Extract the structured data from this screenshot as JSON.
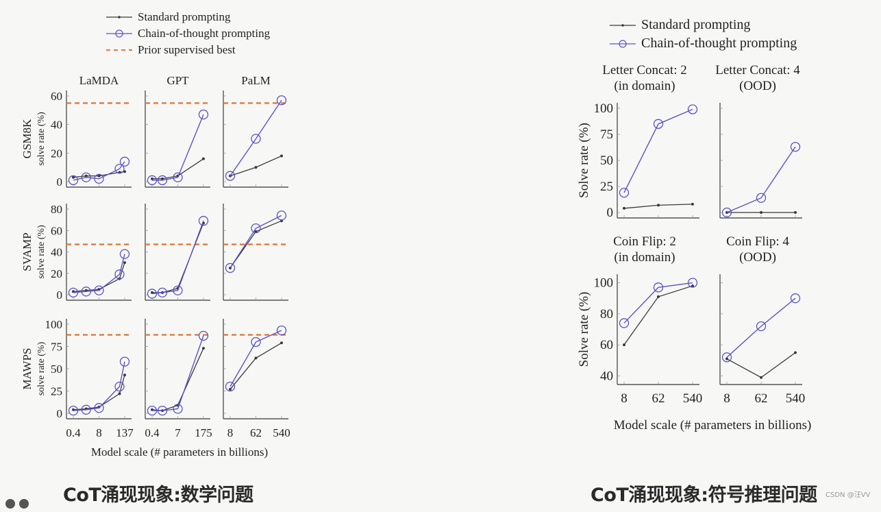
{
  "captions": {
    "left": "CoT涌现现象:数学问题",
    "right": "CoT涌现现象:符号推理问题"
  },
  "watermark": "CSDN @汪VV",
  "colors": {
    "standard": "#3a3a3a",
    "cot": "#5a52c8",
    "prior": "#e07a3a",
    "axis": "#555555",
    "text": "#222222"
  },
  "chart_data": [
    {
      "type": "line",
      "title": "Math word problems (GSM8K / SVAMP / MAWPS) across LaMDA, GPT, PaLM",
      "legend": [
        "Standard prompting",
        "Chain-of-thought prompting",
        "Prior supervised best"
      ],
      "legend_position": "top",
      "xlabel": "Model scale (# parameters in billions)",
      "columns": [
        "LaMDA",
        "GPT",
        "PaLM"
      ],
      "column_xticks": [
        [
          "0.4",
          "8",
          "137"
        ],
        [
          "0.4",
          "7",
          "175"
        ],
        [
          "8",
          "62",
          "540"
        ]
      ],
      "rows": [
        {
          "name": "GSM8K",
          "ylabel": "solve rate (%)",
          "ylim": [
            0,
            60
          ],
          "yticks": [
            0,
            20,
            40,
            60
          ],
          "prior": 55,
          "panels": [
            {
              "x": [
                0,
                0.5,
                1,
                1.8,
                2
              ],
              "standard": [
                3,
                4,
                4,
                6.5,
                7
              ],
              "cot": [
                1,
                3,
                2,
                9,
                14
              ]
            },
            {
              "x": [
                0,
                0.4,
                1,
                2
              ],
              "standard": [
                2,
                2,
                4,
                16
              ],
              "cot": [
                1,
                1,
                3,
                47
              ]
            },
            {
              "x": [
                0,
                1,
                2
              ],
              "standard": [
                4,
                10,
                18
              ],
              "cot": [
                4,
                30,
                57
              ]
            }
          ]
        },
        {
          "name": "SVAMP",
          "ylabel": "solve rate (%)",
          "ylim": [
            0,
            80
          ],
          "yticks": [
            0,
            20,
            40,
            60,
            80
          ],
          "prior": 47,
          "panels": [
            {
              "x": [
                0,
                0.5,
                1,
                1.8,
                2
              ],
              "standard": [
                3,
                4,
                5,
                15,
                30
              ],
              "cot": [
                2,
                3,
                4,
                19,
                38
              ]
            },
            {
              "x": [
                0,
                0.4,
                1,
                2
              ],
              "standard": [
                2,
                2,
                6,
                67
              ],
              "cot": [
                1,
                2,
                4,
                69
              ]
            },
            {
              "x": [
                0,
                1,
                2
              ],
              "standard": [
                25,
                59,
                69
              ],
              "cot": [
                25,
                62,
                74
              ]
            }
          ]
        },
        {
          "name": "MAWPS",
          "ylabel": "solve rate (%)",
          "ylim": [
            0,
            100
          ],
          "yticks": [
            0,
            25,
            50,
            75,
            100
          ],
          "prior": 88,
          "panels": [
            {
              "x": [
                0,
                0.5,
                1,
                1.8,
                2
              ],
              "standard": [
                4,
                5,
                7,
                22,
                43
              ],
              "cot": [
                3,
                4,
                6,
                30,
                58
              ]
            },
            {
              "x": [
                0,
                0.4,
                1,
                2
              ],
              "standard": [
                4,
                3,
                9,
                73
              ],
              "cot": [
                3,
                3,
                5,
                87
              ]
            },
            {
              "x": [
                0,
                1,
                2
              ],
              "standard": [
                27,
                62,
                79
              ],
              "cot": [
                30,
                80,
                93
              ]
            }
          ]
        }
      ]
    },
    {
      "type": "line",
      "title": "Symbolic reasoning (Letter Concat / Coin Flip), PaLM",
      "legend": [
        "Standard prompting",
        "Chain-of-thought prompting"
      ],
      "legend_position": "top",
      "xlabel": "Model scale (# parameters in billions)",
      "ylabel": "Solve rate (%)",
      "xticks": [
        "8",
        "62",
        "540"
      ],
      "rows": [
        {
          "ylim": [
            0,
            100
          ],
          "yticks": [
            0,
            25,
            50,
            75,
            100
          ],
          "panels": [
            {
              "title": [
                "Letter Concat: 2",
                "(in domain)"
              ],
              "standard": [
                4,
                7,
                8
              ],
              "cot": [
                19,
                85,
                99
              ]
            },
            {
              "title": [
                "Letter Concat: 4",
                "(OOD)"
              ],
              "standard": [
                0,
                0,
                0
              ],
              "cot": [
                0,
                14,
                63
              ]
            }
          ]
        },
        {
          "ylim": [
            38,
            102
          ],
          "yticks": [
            40,
            60,
            80,
            100
          ],
          "panels": [
            {
              "title": [
                "Coin Flip: 2",
                "(in domain)"
              ],
              "standard": [
                60,
                91,
                98
              ],
              "cot": [
                74,
                97,
                100
              ]
            },
            {
              "title": [
                "Coin Flip: 4",
                "(OOD)"
              ],
              "standard": [
                51,
                39,
                55
              ],
              "cot": [
                52,
                72,
                90
              ]
            }
          ]
        }
      ]
    }
  ]
}
